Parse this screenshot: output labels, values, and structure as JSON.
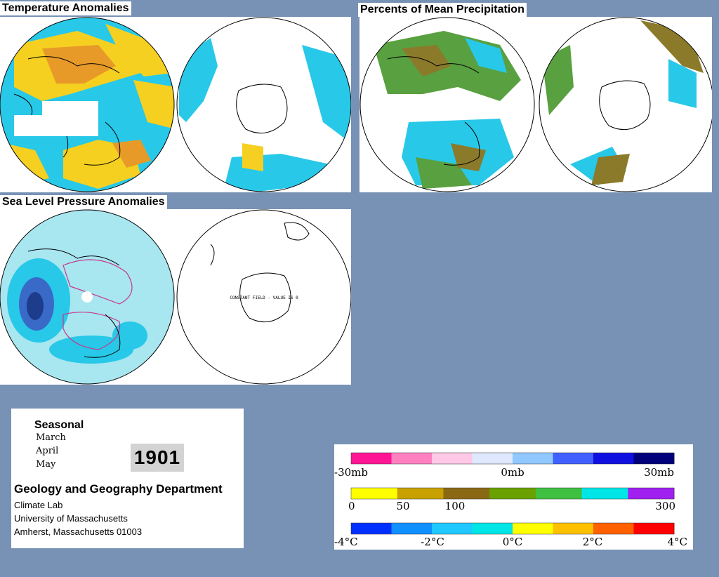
{
  "page": {
    "background_color": "#7892b5"
  },
  "panels": {
    "temperature": {
      "title": "Temperature Anomalies"
    },
    "precipitation": {
      "title": "Percents of Mean Precipitation"
    },
    "pressure": {
      "title": "Sea Level Pressure Anomalies",
      "note": "CONSTANT FIELD - VALUE IS 0"
    }
  },
  "info": {
    "period_type": "Seasonal",
    "months": [
      "March",
      "April",
      "May"
    ],
    "year": "1901",
    "department": "Geology and Geography Department",
    "lab": "Climate Lab",
    "university": "University of Massachusetts",
    "address": "Amherst, Massachusetts 01003"
  },
  "legend": {
    "pressure": {
      "labels": [
        "-30mb",
        "0mb",
        "30mb"
      ],
      "colors": [
        "#ff1493",
        "#ff80c0",
        "#ffc8e6",
        "#e0e8ff",
        "#90c8ff",
        "#4060ff",
        "#1010e0",
        "#00007a"
      ]
    },
    "precipitation": {
      "labels": [
        "0",
        "50",
        "100",
        "300"
      ],
      "colors": [
        "#ffff00",
        "#c8a000",
        "#8b6914",
        "#6aa000",
        "#40c040",
        "#00e6e6",
        "#a020f0"
      ]
    },
    "temperature": {
      "labels": [
        "-4°C",
        "-2°C",
        "0°C",
        "2°C",
        "4°C"
      ],
      "colors": [
        "#0030ff",
        "#1090ff",
        "#20c8ff",
        "#00e6e6",
        "#ffff00",
        "#ffc000",
        "#ff6000",
        "#ff0000"
      ]
    }
  },
  "colors": {
    "cyan": "#28c8e8",
    "yellow": "#f5d020",
    "orange": "#e89a28",
    "olive": "#8b7a2a",
    "green": "#58a040",
    "light_cyan": "#a8e6f0",
    "slp_blue": "#203c8c",
    "slp_pink": "#c8378c"
  }
}
